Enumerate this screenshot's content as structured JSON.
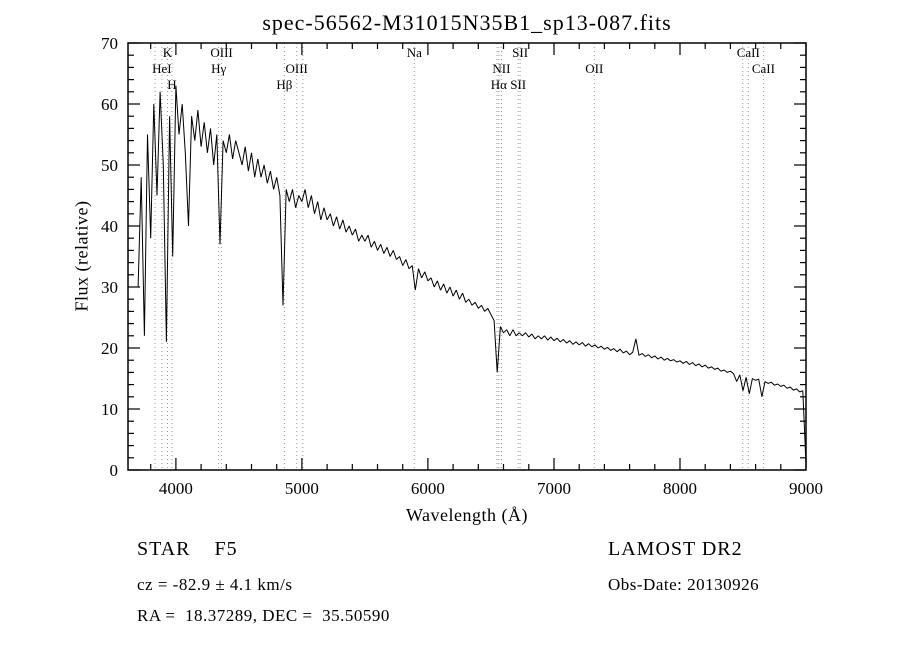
{
  "title": "spec-56562-M31015N35B1_sp13-087.fits",
  "chart_data": {
    "type": "line",
    "title": "spec-56562-M31015N35B1_sp13-087.fits",
    "xlabel": "Wavelength (Å)",
    "ylabel": "Flux (relative)",
    "xlim": [
      3620,
      9000
    ],
    "ylim": [
      0,
      70
    ],
    "x_ticks": [
      4000,
      5000,
      6000,
      7000,
      8000,
      9000
    ],
    "y_ticks": [
      0,
      10,
      20,
      30,
      40,
      50,
      60,
      70
    ],
    "x_minor_step": 200,
    "y_minor_step": 2,
    "grid": false,
    "legend": "none",
    "line_color": "#000000",
    "marker_color": "#9a9a9a",
    "series": [
      {
        "name": "spectrum",
        "x_start": 3700,
        "x_step": 25,
        "flux": [
          30,
          48,
          22,
          55,
          38,
          60,
          45,
          62,
          50,
          21,
          58,
          35,
          63,
          55,
          60,
          52,
          40,
          58,
          54,
          59,
          53,
          57,
          52,
          56,
          50,
          55,
          37,
          54,
          52,
          55,
          51,
          54,
          52,
          50,
          53,
          49,
          52,
          48,
          51,
          48,
          50,
          47,
          49,
          46,
          48,
          45,
          27,
          46,
          44,
          46,
          43,
          45,
          44,
          46,
          43,
          45,
          42,
          44,
          41,
          43,
          41,
          42,
          40,
          41.5,
          39.5,
          41,
          39,
          40,
          38.5,
          39.5,
          37.5,
          38.5,
          37.5,
          38.5,
          36.5,
          37.5,
          36,
          37,
          35.5,
          36.5,
          35,
          36,
          34.5,
          35,
          33.5,
          34.5,
          33,
          33.5,
          29.5,
          33,
          31.5,
          32.5,
          31,
          31.5,
          30,
          31,
          29.5,
          30.5,
          29,
          30,
          28.5,
          29.5,
          28,
          29,
          27.5,
          28,
          27,
          27.5,
          26.5,
          27,
          26,
          26.5,
          25.5,
          24.5,
          16,
          23.5,
          22.5,
          23,
          22,
          23,
          22,
          22.5,
          22,
          22.5,
          21.8,
          22.3,
          21.5,
          22,
          21.5,
          22,
          21.3,
          21.8,
          21.2,
          21.6,
          21,
          21.4,
          20.8,
          21.2,
          20.6,
          21,
          20.5,
          20.9,
          20.3,
          20.7,
          20.2,
          20.5,
          20,
          20.3,
          19.8,
          20.1,
          19.6,
          19.9,
          19.4,
          19.8,
          19.2,
          19.5,
          18.9,
          19.3,
          21.5,
          18.8,
          19.1,
          18.6,
          18.9,
          18.4,
          18.7,
          18.2,
          18.5,
          18,
          18.3,
          17.9,
          18.1,
          17.7,
          17.9,
          17.5,
          17.8,
          17.3,
          17.6,
          17.1,
          17.4,
          16.9,
          17.2,
          16.7,
          16.9,
          16.5,
          16.7,
          16.2,
          16.4,
          16,
          16.2,
          15.8,
          14.5,
          15.6,
          13,
          15.2,
          12.5,
          15,
          14.7,
          14.9,
          12,
          14.5,
          14.2,
          14.4,
          13.9,
          14.1,
          13.7,
          13.9,
          13.4,
          13.6,
          13.1,
          13.3,
          12.8,
          13,
          1
        ]
      }
    ],
    "spectral_lines": [
      {
        "label": "K",
        "wavelength": 3933,
        "row": 1
      },
      {
        "label": "HeI",
        "wavelength": 3889,
        "row": 2
      },
      {
        "label": "H",
        "wavelength": 3968,
        "row": 3
      },
      {
        "label": "OIII",
        "wavelength": 4363,
        "row": 1
      },
      {
        "label": "Hγ",
        "wavelength": 4340,
        "row": 2
      },
      {
        "label": "OIII",
        "wavelength": 4959,
        "row": 2
      },
      {
        "label": "Hβ",
        "wavelength": 4861,
        "row": 3
      },
      {
        "label": "Na",
        "wavelength": 5892,
        "row": 1
      },
      {
        "label": "NII",
        "wavelength": 6583,
        "row": 2
      },
      {
        "label": "Hα",
        "wavelength": 6563,
        "row": 3
      },
      {
        "label": "SII",
        "wavelength": 6731,
        "row": 1
      },
      {
        "label": "SII",
        "wavelength": 6716,
        "row": 3
      },
      {
        "label": "OII",
        "wavelength": 7320,
        "row": 2
      },
      {
        "label": "CaII",
        "wavelength": 8542,
        "row": 1
      },
      {
        "label": "CaII",
        "wavelength": 8662,
        "row": 2
      }
    ],
    "extra_dotted_lines": [
      3835,
      5007,
      6548,
      8498
    ]
  },
  "annotations": {
    "class_line": "STAR    F5",
    "survey": "LAMOST DR2",
    "cz_line": "cz = -82.9 ± 4.1 km/s",
    "obs_date": "Obs-Date: 20130926",
    "coords": "RA =  18.37289, DEC =  35.50590"
  }
}
